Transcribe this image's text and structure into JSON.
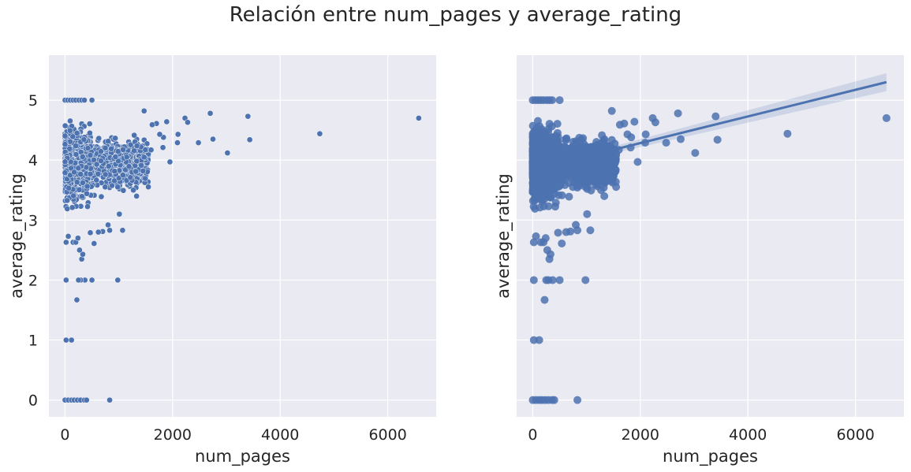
{
  "figure": {
    "title": "Relación entre num_pages y average_rating"
  },
  "chart_data": [
    {
      "type": "scatter",
      "xlabel": "num_pages",
      "ylabel": "average_rating",
      "xlim": [
        -300,
        6900
      ],
      "ylim": [
        -0.28,
        5.75
      ],
      "xticks": [
        0,
        2000,
        4000,
        6000
      ],
      "yticks": [
        0,
        1,
        2,
        3,
        4,
        5
      ],
      "grid": true,
      "color": "#4c72b0",
      "points": [
        [
          6576,
          4.7
        ],
        [
          4736,
          4.44
        ],
        [
          3400,
          4.73
        ],
        [
          3434,
          4.34
        ],
        [
          3020,
          4.12
        ],
        [
          2700,
          4.78
        ],
        [
          2750,
          4.35
        ],
        [
          2480,
          4.29
        ],
        [
          2230,
          4.7
        ],
        [
          2280,
          4.63
        ],
        [
          2090,
          4.29
        ],
        [
          2100,
          4.43
        ],
        [
          1950,
          3.97
        ],
        [
          1890,
          4.64
        ],
        [
          1820,
          4.21
        ],
        [
          1830,
          4.38
        ],
        [
          1760,
          4.43
        ],
        [
          1700,
          4.61
        ],
        [
          1620,
          4.59
        ],
        [
          1600,
          4.17
        ],
        [
          1470,
          4.82
        ],
        [
          1450,
          3.82
        ],
        [
          1330,
          3.4
        ],
        [
          1320,
          3.54
        ],
        [
          1270,
          3.5
        ],
        [
          1070,
          2.83
        ],
        [
          1010,
          3.1
        ],
        [
          830,
          2.83
        ],
        [
          800,
          2.92
        ],
        [
          700,
          2.81
        ],
        [
          620,
          2.8
        ],
        [
          540,
          2.61
        ],
        [
          470,
          2.79
        ],
        [
          980,
          2.0
        ],
        [
          500,
          2.0
        ],
        [
          370,
          2.0
        ],
        [
          290,
          2.0
        ],
        [
          250,
          2.0
        ],
        [
          20,
          2.0
        ],
        [
          220,
          1.67
        ],
        [
          310,
          2.35
        ],
        [
          330,
          2.43
        ],
        [
          20,
          1.0
        ],
        [
          120,
          1.0
        ],
        [
          830,
          0.0
        ],
        [
          0,
          0.0
        ],
        [
          60,
          0.0
        ],
        [
          120,
          0.0
        ],
        [
          170,
          0.0
        ],
        [
          230,
          0.0
        ],
        [
          290,
          0.0
        ],
        [
          360,
          0.0
        ],
        [
          400,
          0.0
        ],
        [
          0,
          5.0
        ],
        [
          50,
          5.0
        ],
        [
          100,
          5.0
        ],
        [
          150,
          5.0
        ],
        [
          200,
          5.0
        ],
        [
          260,
          5.0
        ],
        [
          310,
          5.0
        ],
        [
          360,
          5.0
        ],
        [
          500,
          5.0
        ],
        [
          20,
          2.63
        ],
        [
          60,
          2.73
        ],
        [
          150,
          2.63
        ],
        [
          200,
          2.63
        ],
        [
          240,
          2.7
        ],
        [
          270,
          2.5
        ]
      ],
      "cloud": {
        "count": 1400,
        "x_range": [
          0,
          1550
        ],
        "y_range": [
          2.7,
          4.85
        ],
        "center": 3.95,
        "spread": 0.33
      }
    },
    {
      "type": "scatter",
      "xlabel": "num_pages",
      "ylabel": "average_rating",
      "xlim": [
        -300,
        6900
      ],
      "ylim": [
        -0.28,
        5.75
      ],
      "xticks": [
        0,
        2000,
        4000,
        6000
      ],
      "yticks": [
        0,
        1,
        2,
        3,
        4,
        5
      ],
      "grid": true,
      "color": "#4c72b0",
      "same_points_as": 0,
      "regression": {
        "x": [
          0,
          6576
        ],
        "y": [
          3.84,
          5.3
        ],
        "ci_start": [
          3.81,
          3.87
        ],
        "ci_end": [
          5.15,
          5.45
        ]
      }
    }
  ]
}
